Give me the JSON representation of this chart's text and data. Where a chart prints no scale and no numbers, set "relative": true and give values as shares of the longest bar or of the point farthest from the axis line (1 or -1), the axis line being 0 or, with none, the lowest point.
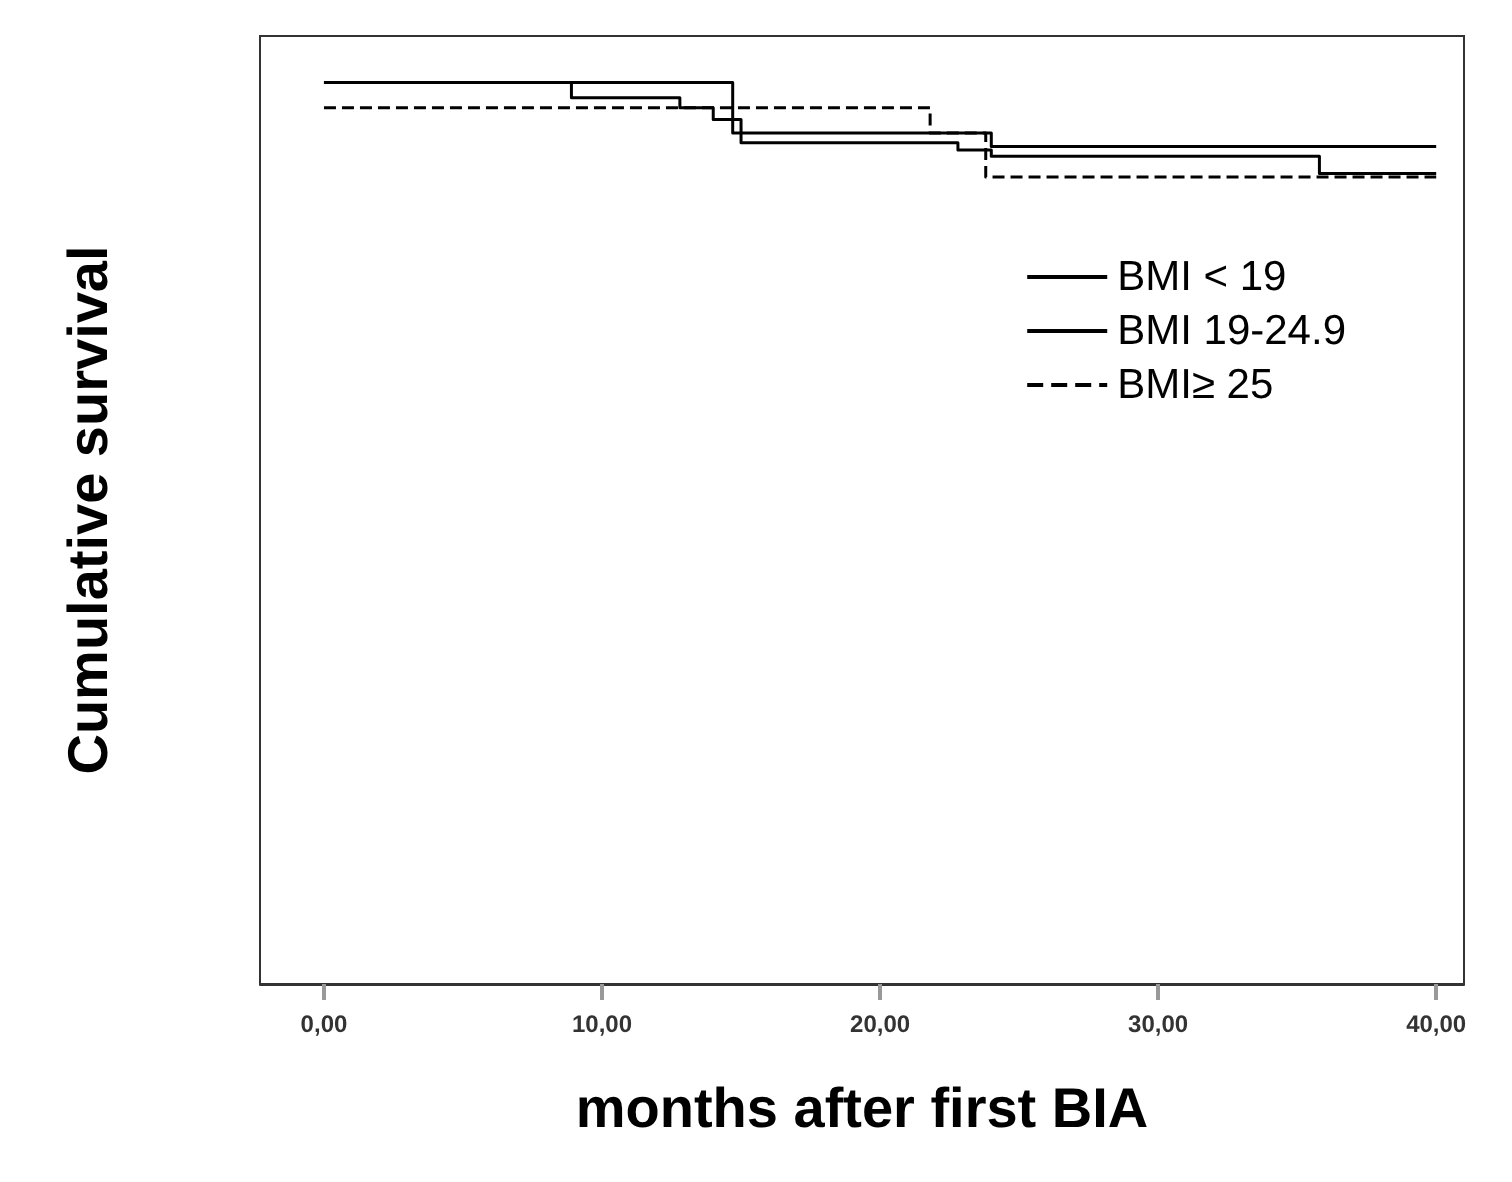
{
  "chart_data": {
    "type": "step",
    "relative": true,
    "xlabel": "months after first BIA",
    "ylabel": "Cumulative survival",
    "xlim": [
      -2.3,
      41
    ],
    "xticks": [
      {
        "value": 0,
        "label": "0,00"
      },
      {
        "value": 10,
        "label": "10,00"
      },
      {
        "value": 20,
        "label": "20,00"
      },
      {
        "value": 30,
        "label": "30,00"
      },
      {
        "value": 40,
        "label": "40,00"
      }
    ],
    "series": [
      {
        "name": "BMI < 19",
        "color": "#000000",
        "line_style": "solid",
        "x": [
          0,
          14.7,
          24,
          40
        ],
        "values": [
          1,
          0.944,
          0.929,
          0.929
        ]
      },
      {
        "name": "BMI 19-24.9",
        "color": "#000000",
        "line_style": "solid",
        "x": [
          0,
          8.9,
          12.8,
          14,
          15,
          22.8,
          24,
          35.8,
          40
        ],
        "values": [
          1,
          0.983,
          0.972,
          0.959,
          0.933,
          0.925,
          0.918,
          0.899,
          0.899
        ]
      },
      {
        "name": "BMI≥ 25",
        "color": "#000000",
        "line_style": "dashed",
        "x": [
          0,
          21.8,
          23.8,
          40
        ],
        "values": [
          0.972,
          0.944,
          0.895,
          0.895
        ]
      }
    ],
    "legend": "right",
    "grid": false
  }
}
